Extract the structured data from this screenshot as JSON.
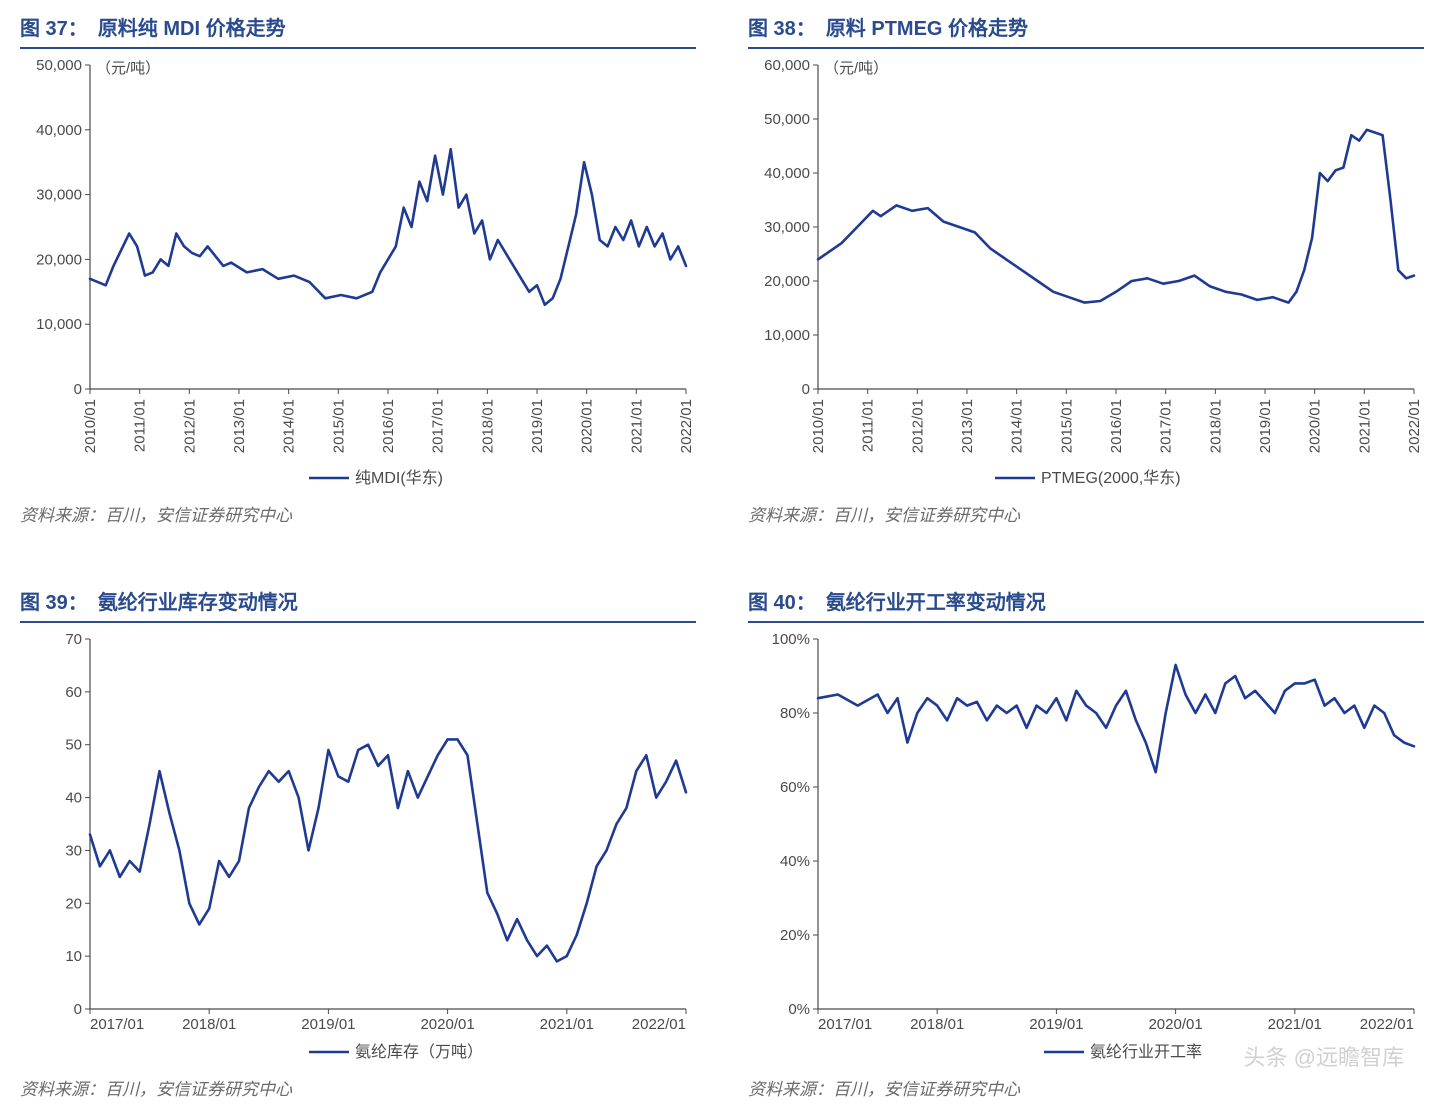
{
  "colors": {
    "title": "#2a4b8d",
    "title_rule": "#2a4b8d",
    "axis": "#4a4a4a",
    "line": "#1f3a93",
    "source": "#6b6b6b",
    "bg": "#ffffff"
  },
  "watermark": "头条 @远瞻智库",
  "panels": {
    "p37": {
      "fig_no": "图 37：",
      "fig_text": "原料纯 MDI 价格走势",
      "source": "资料来源：百川，安信证券研究中心",
      "y_unit": "（元/吨）",
      "legend": "纯MDI(华东)",
      "type": "line",
      "line_width": 2.6,
      "ylim": [
        0,
        50000
      ],
      "ytick_step": 10000,
      "y_fmt": "thousand",
      "x_labels": [
        "2010/01",
        "2011/01",
        "2012/01",
        "2013/01",
        "2014/01",
        "2015/01",
        "2016/01",
        "2017/01",
        "2018/01",
        "2019/01",
        "2020/01",
        "2021/01",
        "2022/01"
      ],
      "x_label_rotation": -90,
      "series": [
        {
          "x": 0,
          "y": 17000
        },
        {
          "x": 4,
          "y": 16000
        },
        {
          "x": 6,
          "y": 19000
        },
        {
          "x": 10,
          "y": 24000
        },
        {
          "x": 12,
          "y": 22000
        },
        {
          "x": 14,
          "y": 17500
        },
        {
          "x": 16,
          "y": 18000
        },
        {
          "x": 18,
          "y": 20000
        },
        {
          "x": 20,
          "y": 19000
        },
        {
          "x": 22,
          "y": 24000
        },
        {
          "x": 24,
          "y": 22000
        },
        {
          "x": 26,
          "y": 21000
        },
        {
          "x": 28,
          "y": 20500
        },
        {
          "x": 30,
          "y": 22000
        },
        {
          "x": 34,
          "y": 19000
        },
        {
          "x": 36,
          "y": 19500
        },
        {
          "x": 40,
          "y": 18000
        },
        {
          "x": 44,
          "y": 18500
        },
        {
          "x": 48,
          "y": 17000
        },
        {
          "x": 52,
          "y": 17500
        },
        {
          "x": 56,
          "y": 16500
        },
        {
          "x": 60,
          "y": 14000
        },
        {
          "x": 64,
          "y": 14500
        },
        {
          "x": 68,
          "y": 14000
        },
        {
          "x": 72,
          "y": 15000
        },
        {
          "x": 74,
          "y": 18000
        },
        {
          "x": 76,
          "y": 20000
        },
        {
          "x": 78,
          "y": 22000
        },
        {
          "x": 80,
          "y": 28000
        },
        {
          "x": 82,
          "y": 25000
        },
        {
          "x": 84,
          "y": 32000
        },
        {
          "x": 86,
          "y": 29000
        },
        {
          "x": 88,
          "y": 36000
        },
        {
          "x": 90,
          "y": 30000
        },
        {
          "x": 92,
          "y": 37000
        },
        {
          "x": 94,
          "y": 28000
        },
        {
          "x": 96,
          "y": 30000
        },
        {
          "x": 98,
          "y": 24000
        },
        {
          "x": 100,
          "y": 26000
        },
        {
          "x": 102,
          "y": 20000
        },
        {
          "x": 104,
          "y": 23000
        },
        {
          "x": 108,
          "y": 19000
        },
        {
          "x": 110,
          "y": 17000
        },
        {
          "x": 112,
          "y": 15000
        },
        {
          "x": 114,
          "y": 16000
        },
        {
          "x": 116,
          "y": 13000
        },
        {
          "x": 118,
          "y": 14000
        },
        {
          "x": 120,
          "y": 17000
        },
        {
          "x": 122,
          "y": 22000
        },
        {
          "x": 124,
          "y": 27000
        },
        {
          "x": 126,
          "y": 35000
        },
        {
          "x": 128,
          "y": 30000
        },
        {
          "x": 130,
          "y": 23000
        },
        {
          "x": 132,
          "y": 22000
        },
        {
          "x": 134,
          "y": 25000
        },
        {
          "x": 136,
          "y": 23000
        },
        {
          "x": 138,
          "y": 26000
        },
        {
          "x": 140,
          "y": 22000
        },
        {
          "x": 142,
          "y": 25000
        },
        {
          "x": 144,
          "y": 22000
        },
        {
          "x": 146,
          "y": 24000
        },
        {
          "x": 148,
          "y": 20000
        },
        {
          "x": 150,
          "y": 22000
        },
        {
          "x": 152,
          "y": 19000
        }
      ],
      "x_domain": [
        0,
        152
      ]
    },
    "p38": {
      "fig_no": "图 38：",
      "fig_text": "原料 PTMEG 价格走势",
      "source": "资料来源：百川，安信证券研究中心",
      "y_unit": "（元/吨）",
      "legend": "PTMEG(2000,华东)",
      "type": "line",
      "line_width": 2.6,
      "ylim": [
        0,
        60000
      ],
      "ytick_step": 10000,
      "y_fmt": "thousand",
      "x_labels": [
        "2010/01",
        "2011/01",
        "2012/01",
        "2013/01",
        "2014/01",
        "2015/01",
        "2016/01",
        "2017/01",
        "2018/01",
        "2019/01",
        "2020/01",
        "2021/01",
        "2022/01"
      ],
      "x_label_rotation": -90,
      "series": [
        {
          "x": 0,
          "y": 24000
        },
        {
          "x": 6,
          "y": 27000
        },
        {
          "x": 10,
          "y": 30000
        },
        {
          "x": 14,
          "y": 33000
        },
        {
          "x": 16,
          "y": 32000
        },
        {
          "x": 20,
          "y": 34000
        },
        {
          "x": 24,
          "y": 33000
        },
        {
          "x": 28,
          "y": 33500
        },
        {
          "x": 32,
          "y": 31000
        },
        {
          "x": 36,
          "y": 30000
        },
        {
          "x": 40,
          "y": 29000
        },
        {
          "x": 44,
          "y": 26000
        },
        {
          "x": 48,
          "y": 24000
        },
        {
          "x": 52,
          "y": 22000
        },
        {
          "x": 56,
          "y": 20000
        },
        {
          "x": 60,
          "y": 18000
        },
        {
          "x": 64,
          "y": 17000
        },
        {
          "x": 68,
          "y": 16000
        },
        {
          "x": 72,
          "y": 16300
        },
        {
          "x": 76,
          "y": 18000
        },
        {
          "x": 80,
          "y": 20000
        },
        {
          "x": 84,
          "y": 20500
        },
        {
          "x": 88,
          "y": 19500
        },
        {
          "x": 92,
          "y": 20000
        },
        {
          "x": 96,
          "y": 21000
        },
        {
          "x": 100,
          "y": 19000
        },
        {
          "x": 104,
          "y": 18000
        },
        {
          "x": 108,
          "y": 17500
        },
        {
          "x": 112,
          "y": 16500
        },
        {
          "x": 116,
          "y": 17000
        },
        {
          "x": 120,
          "y": 16000
        },
        {
          "x": 122,
          "y": 18000
        },
        {
          "x": 124,
          "y": 22000
        },
        {
          "x": 126,
          "y": 28000
        },
        {
          "x": 128,
          "y": 40000
        },
        {
          "x": 130,
          "y": 38500
        },
        {
          "x": 132,
          "y": 40500
        },
        {
          "x": 134,
          "y": 41000
        },
        {
          "x": 136,
          "y": 47000
        },
        {
          "x": 138,
          "y": 46000
        },
        {
          "x": 140,
          "y": 48000
        },
        {
          "x": 142,
          "y": 47500
        },
        {
          "x": 144,
          "y": 47000
        },
        {
          "x": 146,
          "y": 35000
        },
        {
          "x": 148,
          "y": 22000
        },
        {
          "x": 150,
          "y": 20500
        },
        {
          "x": 152,
          "y": 21000
        }
      ],
      "x_domain": [
        0,
        152
      ]
    },
    "p39": {
      "fig_no": "图 39：",
      "fig_text": "氨纶行业库存变动情况",
      "source": "资料来源：百川，安信证券研究中心",
      "y_unit": "",
      "legend": "氨纶库存（万吨）",
      "type": "line",
      "line_width": 2.6,
      "ylim": [
        0,
        70
      ],
      "ytick_step": 10,
      "y_fmt": "plain",
      "x_labels": [
        "2017/01",
        "2018/01",
        "2019/01",
        "2020/01",
        "2021/01",
        "2022/01"
      ],
      "x_label_rotation": 0,
      "series": [
        {
          "x": 0,
          "y": 33
        },
        {
          "x": 2,
          "y": 27
        },
        {
          "x": 4,
          "y": 30
        },
        {
          "x": 6,
          "y": 25
        },
        {
          "x": 8,
          "y": 28
        },
        {
          "x": 10,
          "y": 26
        },
        {
          "x": 12,
          "y": 35
        },
        {
          "x": 14,
          "y": 45
        },
        {
          "x": 16,
          "y": 37
        },
        {
          "x": 18,
          "y": 30
        },
        {
          "x": 20,
          "y": 20
        },
        {
          "x": 22,
          "y": 16
        },
        {
          "x": 24,
          "y": 19
        },
        {
          "x": 26,
          "y": 28
        },
        {
          "x": 28,
          "y": 25
        },
        {
          "x": 30,
          "y": 28
        },
        {
          "x": 32,
          "y": 38
        },
        {
          "x": 34,
          "y": 42
        },
        {
          "x": 36,
          "y": 45
        },
        {
          "x": 38,
          "y": 43
        },
        {
          "x": 40,
          "y": 45
        },
        {
          "x": 42,
          "y": 40
        },
        {
          "x": 44,
          "y": 30
        },
        {
          "x": 46,
          "y": 38
        },
        {
          "x": 48,
          "y": 49
        },
        {
          "x": 50,
          "y": 44
        },
        {
          "x": 52,
          "y": 43
        },
        {
          "x": 54,
          "y": 49
        },
        {
          "x": 56,
          "y": 50
        },
        {
          "x": 58,
          "y": 46
        },
        {
          "x": 60,
          "y": 48
        },
        {
          "x": 62,
          "y": 38
        },
        {
          "x": 64,
          "y": 45
        },
        {
          "x": 66,
          "y": 40
        },
        {
          "x": 68,
          "y": 44
        },
        {
          "x": 70,
          "y": 48
        },
        {
          "x": 72,
          "y": 51
        },
        {
          "x": 74,
          "y": 51
        },
        {
          "x": 76,
          "y": 48
        },
        {
          "x": 78,
          "y": 35
        },
        {
          "x": 80,
          "y": 22
        },
        {
          "x": 82,
          "y": 18
        },
        {
          "x": 84,
          "y": 13
        },
        {
          "x": 86,
          "y": 17
        },
        {
          "x": 88,
          "y": 13
        },
        {
          "x": 90,
          "y": 10
        },
        {
          "x": 92,
          "y": 12
        },
        {
          "x": 94,
          "y": 9
        },
        {
          "x": 96,
          "y": 10
        },
        {
          "x": 98,
          "y": 14
        },
        {
          "x": 100,
          "y": 20
        },
        {
          "x": 102,
          "y": 27
        },
        {
          "x": 104,
          "y": 30
        },
        {
          "x": 106,
          "y": 35
        },
        {
          "x": 108,
          "y": 38
        },
        {
          "x": 110,
          "y": 45
        },
        {
          "x": 112,
          "y": 48
        },
        {
          "x": 114,
          "y": 40
        },
        {
          "x": 116,
          "y": 43
        },
        {
          "x": 118,
          "y": 47
        },
        {
          "x": 120,
          "y": 41
        }
      ],
      "x_domain": [
        0,
        120
      ]
    },
    "p40": {
      "fig_no": "图 40：",
      "fig_text": "氨纶行业开工率变动情况",
      "source": "资料来源：百川，安信证券研究中心",
      "y_unit": "",
      "legend": "氨纶行业开工率",
      "type": "line",
      "line_width": 2.6,
      "ylim": [
        0,
        100
      ],
      "ytick_step": 20,
      "y_fmt": "percent",
      "x_labels": [
        "2017/01",
        "2018/01",
        "2019/01",
        "2020/01",
        "2021/01",
        "2022/01"
      ],
      "x_label_rotation": 0,
      "series": [
        {
          "x": 0,
          "y": 84
        },
        {
          "x": 4,
          "y": 85
        },
        {
          "x": 8,
          "y": 82
        },
        {
          "x": 12,
          "y": 85
        },
        {
          "x": 14,
          "y": 80
        },
        {
          "x": 16,
          "y": 84
        },
        {
          "x": 18,
          "y": 72
        },
        {
          "x": 20,
          "y": 80
        },
        {
          "x": 22,
          "y": 84
        },
        {
          "x": 24,
          "y": 82
        },
        {
          "x": 26,
          "y": 78
        },
        {
          "x": 28,
          "y": 84
        },
        {
          "x": 30,
          "y": 82
        },
        {
          "x": 32,
          "y": 83
        },
        {
          "x": 34,
          "y": 78
        },
        {
          "x": 36,
          "y": 82
        },
        {
          "x": 38,
          "y": 80
        },
        {
          "x": 40,
          "y": 82
        },
        {
          "x": 42,
          "y": 76
        },
        {
          "x": 44,
          "y": 82
        },
        {
          "x": 46,
          "y": 80
        },
        {
          "x": 48,
          "y": 84
        },
        {
          "x": 50,
          "y": 78
        },
        {
          "x": 52,
          "y": 86
        },
        {
          "x": 54,
          "y": 82
        },
        {
          "x": 56,
          "y": 80
        },
        {
          "x": 58,
          "y": 76
        },
        {
          "x": 60,
          "y": 82
        },
        {
          "x": 62,
          "y": 86
        },
        {
          "x": 64,
          "y": 78
        },
        {
          "x": 66,
          "y": 72
        },
        {
          "x": 68,
          "y": 64
        },
        {
          "x": 70,
          "y": 80
        },
        {
          "x": 72,
          "y": 93
        },
        {
          "x": 74,
          "y": 85
        },
        {
          "x": 76,
          "y": 80
        },
        {
          "x": 78,
          "y": 85
        },
        {
          "x": 80,
          "y": 80
        },
        {
          "x": 82,
          "y": 88
        },
        {
          "x": 84,
          "y": 90
        },
        {
          "x": 86,
          "y": 84
        },
        {
          "x": 88,
          "y": 86
        },
        {
          "x": 90,
          "y": 83
        },
        {
          "x": 92,
          "y": 80
        },
        {
          "x": 94,
          "y": 86
        },
        {
          "x": 96,
          "y": 88
        },
        {
          "x": 98,
          "y": 88
        },
        {
          "x": 100,
          "y": 89
        },
        {
          "x": 102,
          "y": 82
        },
        {
          "x": 104,
          "y": 84
        },
        {
          "x": 106,
          "y": 80
        },
        {
          "x": 108,
          "y": 82
        },
        {
          "x": 110,
          "y": 76
        },
        {
          "x": 112,
          "y": 82
        },
        {
          "x": 114,
          "y": 80
        },
        {
          "x": 116,
          "y": 74
        },
        {
          "x": 118,
          "y": 72
        },
        {
          "x": 120,
          "y": 71
        }
      ],
      "x_domain": [
        0,
        120
      ]
    }
  }
}
